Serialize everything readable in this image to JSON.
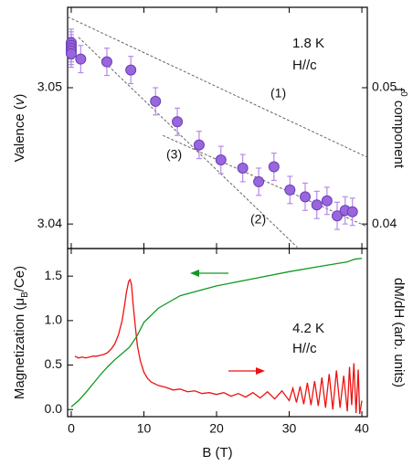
{
  "chart_data": [
    {
      "type": "scatter",
      "y_label": [
        "Valence (",
        "v",
        ")"
      ],
      "y2_label": [
        "f",
        "0",
        " component"
      ],
      "annotations": [
        "1.8 K",
        "H//c"
      ],
      "xlim": [
        -0.5,
        40.75
      ],
      "xticks": [
        0,
        10,
        20,
        30,
        40
      ],
      "xtick_labels": false,
      "ylim": [
        3.0382,
        3.0559
      ],
      "yticks": [
        3.04,
        3.05
      ],
      "y2lim": [
        0.0382,
        0.0559
      ],
      "y2ticks": [
        0.04,
        0.05
      ],
      "series": [
        {
          "color": "#9966dd",
          "x": [
            0,
            0,
            0,
            0,
            0,
            1.3,
            4.9,
            8.2,
            11.6,
            14.6,
            17.6,
            20.6,
            23.6,
            25.8,
            27.9,
            30.1,
            32.2,
            33.8,
            35.2,
            36.6,
            37.7,
            38.7
          ],
          "values": [
            3.0533,
            3.0531,
            3.0529,
            3.0527,
            3.0525,
            3.0521,
            3.0519,
            3.0513,
            3.049,
            3.0475,
            3.0458,
            3.0447,
            3.0441,
            3.0431,
            3.0442,
            3.0425,
            3.042,
            3.0414,
            3.0417,
            3.0406,
            3.041,
            3.0409
          ],
          "errors": [
            0.001,
            0.001,
            0.001,
            0.001,
            0.001,
            0.001,
            0.001,
            0.001,
            0.001,
            0.001,
            0.001,
            0.001,
            0.001,
            0.001,
            0.001,
            0.001,
            0.001,
            0.001,
            0.001,
            0.001,
            0.001,
            0.001
          ]
        }
      ],
      "fits": [
        {
          "name": "(1)",
          "x": [
            -0.5,
            40.75
          ],
          "values": [
            3.0552,
            3.0449
          ]
        },
        {
          "name": "(2)",
          "x": [
            1,
            31.1
          ],
          "values": [
            3.0537,
            3.0383
          ]
        },
        {
          "name": "(3)",
          "x": [
            12.6,
            40.75
          ],
          "values": [
            3.0465,
            3.0398
          ]
        }
      ]
    },
    {
      "type": "line",
      "x_label": "B (T)",
      "y_label": [
        "Magnetization (μ",
        "B",
        "/Ce)"
      ],
      "y2_label": "dM/dH (arb. units)",
      "annotations": [
        "4.2 K",
        "H//c"
      ],
      "xlim": [
        -0.5,
        40.75
      ],
      "xticks": [
        0,
        10,
        20,
        30,
        40
      ],
      "xtick_labels": true,
      "ylim": [
        -0.08,
        1.81
      ],
      "yticks": [
        {
          "value": 0,
          "label": "0.0"
        },
        0.5,
        {
          "value": 1,
          "label": "1.0"
        },
        1.5
      ],
      "series": [
        {
          "color": "#ee1111",
          "x": [
            0.5,
            1,
            1.5,
            2,
            2.5,
            3,
            3.5,
            4,
            4.5,
            5,
            5.5,
            6,
            6.5,
            7,
            7.3,
            7.6,
            7.9,
            8.1,
            8.3,
            8.5,
            8.8,
            9.1,
            9.5,
            10,
            10.5,
            11,
            12,
            13,
            14,
            15,
            16,
            17,
            18,
            19,
            20,
            21,
            22,
            23,
            24,
            25,
            26,
            27,
            28,
            29,
            30,
            30.5,
            31,
            31.5,
            32,
            32.5,
            33,
            33.5,
            34,
            34.5,
            35,
            35.5,
            36,
            36.5,
            37,
            37.5,
            38,
            38.3,
            38.6,
            38.9,
            39.2,
            39.5,
            39.7,
            40
          ],
          "values": [
            0.6,
            0.58,
            0.59,
            0.58,
            0.59,
            0.6,
            0.6,
            0.61,
            0.62,
            0.64,
            0.68,
            0.74,
            0.84,
            1.0,
            1.15,
            1.32,
            1.44,
            1.46,
            1.4,
            1.2,
            0.95,
            0.72,
            0.55,
            0.42,
            0.35,
            0.31,
            0.27,
            0.25,
            0.22,
            0.23,
            0.2,
            0.21,
            0.18,
            0.19,
            0.17,
            0.19,
            0.15,
            0.18,
            0.14,
            0.19,
            0.13,
            0.2,
            0.12,
            0.21,
            0.1,
            0.24,
            0.08,
            0.26,
            0.06,
            0.3,
            0.05,
            0.32,
            0.04,
            0.36,
            0.02,
            0.4,
            0,
            0.44,
            0.02,
            0.38,
            -0.02,
            0.48,
            0.05,
            0.52,
            -0.04,
            0.45,
            -0.05,
            0.1
          ]
        },
        {
          "color": "#119922",
          "x": [
            0,
            1,
            2,
            3,
            4,
            5,
            6,
            7,
            8,
            9,
            10,
            12,
            15,
            20,
            25,
            30,
            35,
            38,
            39,
            40
          ],
          "values": [
            0.03,
            0.1,
            0.19,
            0.29,
            0.39,
            0.48,
            0.56,
            0.63,
            0.7,
            0.82,
            0.98,
            1.14,
            1.28,
            1.39,
            1.47,
            1.55,
            1.62,
            1.66,
            1.69,
            1.7
          ]
        }
      ]
    }
  ]
}
